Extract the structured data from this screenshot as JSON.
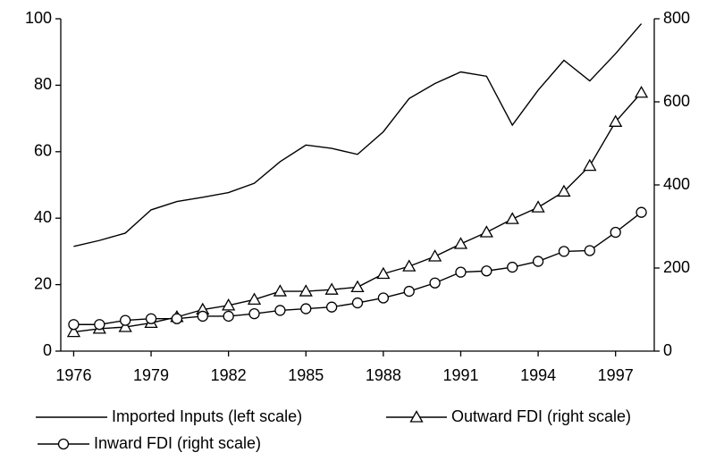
{
  "chart_data": {
    "type": "line",
    "x": [
      1976,
      1977,
      1978,
      1979,
      1980,
      1981,
      1982,
      1983,
      1984,
      1985,
      1986,
      1987,
      1988,
      1989,
      1990,
      1991,
      1992,
      1993,
      1994,
      1995,
      1996,
      1997,
      1998
    ],
    "xlim": [
      1975.5,
      1998.5
    ],
    "xticks": [
      1976,
      1979,
      1982,
      1985,
      1988,
      1991,
      1994,
      1997
    ],
    "ylim": [
      0,
      100
    ],
    "yticks": [
      0,
      20,
      40,
      60,
      80,
      100
    ],
    "y2lim": [
      0,
      800
    ],
    "y2ticks": [
      0,
      200,
      400,
      600,
      800
    ],
    "grid": false,
    "legend": "bottom",
    "series": [
      {
        "name": "Imported Inputs (left scale)",
        "color": "#000000",
        "marker": "none",
        "axis": "y",
        "values": [
          31.5,
          33.3,
          35.5,
          42.5,
          45,
          46.3,
          47.7,
          50.5,
          57,
          62,
          61,
          59.2,
          66,
          76,
          80.5,
          84,
          82.7,
          68,
          78.5,
          87.5,
          81.3,
          89.5,
          98.5
        ]
      },
      {
        "name": "Outward FDI (right scale)",
        "color": "#000000",
        "marker": "triangle",
        "axis": "y2",
        "values": [
          46,
          54,
          58,
          68,
          82,
          100,
          110,
          124,
          144,
          144,
          148,
          154,
          186,
          204,
          228,
          258,
          286,
          318,
          346,
          384,
          446,
          552,
          622
        ]
      },
      {
        "name": "Inward FDI (right scale)",
        "color": "#000000",
        "marker": "circle",
        "axis": "y2",
        "values": [
          64,
          64,
          74,
          78,
          78,
          84,
          84,
          90,
          98,
          102,
          106,
          116,
          128,
          144,
          164,
          190,
          193,
          202,
          216,
          240,
          242,
          286,
          334
        ]
      }
    ]
  }
}
